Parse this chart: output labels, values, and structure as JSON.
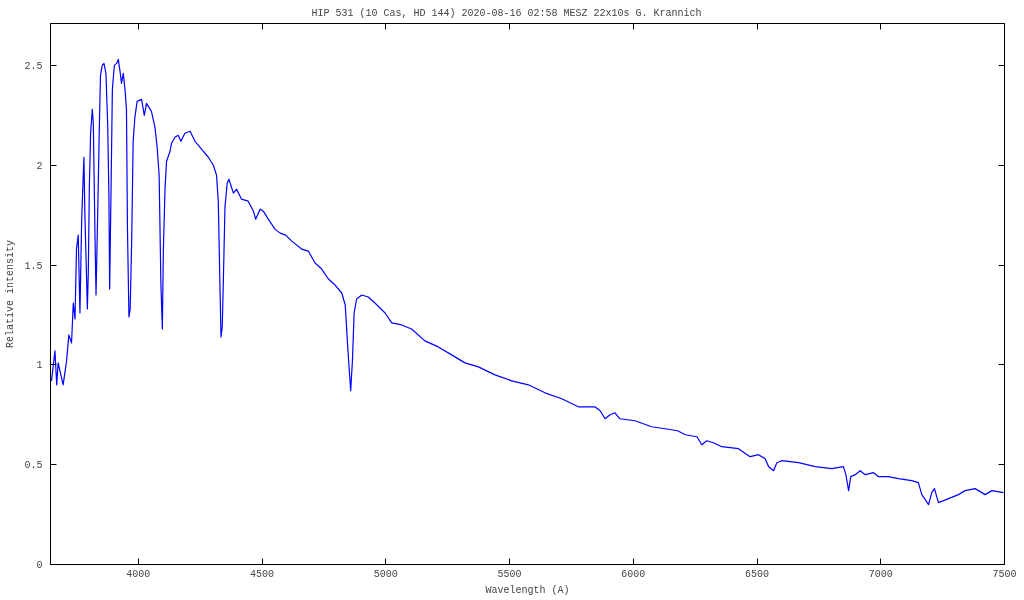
{
  "chart_data": {
    "type": "line",
    "title": "HIP 531  (10 Cas, HD 144)   2020-08-16 02:58 MESZ   22x10s   G. Krannich",
    "xlabel": "Wavelength (A)",
    "ylabel": "Relative intensity",
    "x": [
      3649,
      3663,
      3670,
      3676,
      3696,
      3710,
      3719,
      3730,
      3737,
      3744,
      3750,
      3757,
      3764,
      3771,
      3780,
      3784,
      3794,
      3798,
      3802,
      3807,
      3814,
      3818,
      3825,
      3829,
      3838,
      3842,
      3847,
      3854,
      3861,
      3869,
      3876,
      3881,
      3884,
      3889,
      3895,
      3903,
      3912,
      3919,
      3926,
      3932,
      3939,
      3946,
      3952,
      3956,
      3962,
      3967,
      3973,
      3979,
      3986,
      3995,
      4013,
      4024,
      4033,
      4053,
      4067,
      4076,
      4084,
      4091,
      4097,
      4101,
      4108,
      4114,
      4128,
      4134,
      4148,
      4161,
      4172,
      4188,
      4209,
      4229,
      4256,
      4283,
      4303,
      4316,
      4323,
      4330,
      4334,
      4339,
      4344,
      4350,
      4359,
      4366,
      4384,
      4397,
      4417,
      4444,
      4465,
      4474,
      4492,
      4505,
      4525,
      4552,
      4573,
      4595,
      4620,
      4660,
      4687,
      4714,
      4741,
      4768,
      4795,
      4822,
      4836,
      4846,
      4853,
      4858,
      4865,
      4872,
      4882,
      4903,
      4929,
      4956,
      4997,
      5024,
      5064,
      5104,
      5158,
      5212,
      5266,
      5320,
      5374,
      5441,
      5509,
      5576,
      5643,
      5711,
      5778,
      5845,
      5866,
      5886,
      5906,
      5926,
      5946,
      6007,
      6074,
      6129,
      6179,
      6210,
      6257,
      6277,
      6297,
      6324,
      6358,
      6425,
      6472,
      6506,
      6533,
      6547,
      6567,
      6580,
      6600,
      6668,
      6735,
      6802,
      6849,
      6859,
      6870,
      6879,
      6897,
      6917,
      6937,
      6971,
      6991,
      7031,
      7072,
      7125,
      7152,
      7166,
      7193,
      7206,
      7217,
      7233,
      7274,
      7314,
      7341,
      7381,
      7422,
      7449,
      7496
    ],
    "series": [
      {
        "color": "#0000ff",
        "values": [
          0.92,
          1.07,
          0.9,
          1.01,
          0.9,
          1.02,
          1.15,
          1.11,
          1.31,
          1.23,
          1.58,
          1.65,
          1.26,
          1.73,
          2.04,
          1.75,
          1.28,
          1.48,
          1.89,
          2.16,
          2.28,
          2.21,
          1.63,
          1.35,
          1.9,
          2.17,
          2.45,
          2.5,
          2.51,
          2.46,
          2.21,
          1.85,
          1.38,
          1.82,
          2.38,
          2.5,
          2.51,
          2.53,
          2.47,
          2.41,
          2.46,
          2.38,
          2.28,
          1.68,
          1.24,
          1.28,
          1.62,
          2.12,
          2.24,
          2.32,
          2.33,
          2.25,
          2.31,
          2.27,
          2.19,
          2.09,
          1.95,
          1.41,
          1.18,
          1.57,
          1.89,
          2.02,
          2.07,
          2.11,
          2.14,
          2.15,
          2.12,
          2.16,
          2.17,
          2.12,
          2.08,
          2.04,
          2.0,
          1.95,
          1.82,
          1.38,
          1.14,
          1.19,
          1.45,
          1.79,
          1.91,
          1.93,
          1.86,
          1.88,
          1.83,
          1.82,
          1.77,
          1.73,
          1.78,
          1.77,
          1.73,
          1.68,
          1.66,
          1.65,
          1.62,
          1.58,
          1.57,
          1.51,
          1.48,
          1.43,
          1.4,
          1.36,
          1.3,
          1.09,
          0.96,
          0.87,
          1.02,
          1.26,
          1.33,
          1.35,
          1.34,
          1.31,
          1.26,
          1.21,
          1.2,
          1.18,
          1.12,
          1.09,
          1.05,
          1.01,
          0.99,
          0.95,
          0.92,
          0.9,
          0.86,
          0.83,
          0.79,
          0.79,
          0.77,
          0.73,
          0.75,
          0.76,
          0.73,
          0.72,
          0.69,
          0.68,
          0.67,
          0.65,
          0.64,
          0.6,
          0.62,
          0.61,
          0.59,
          0.58,
          0.54,
          0.55,
          0.53,
          0.49,
          0.47,
          0.51,
          0.52,
          0.51,
          0.49,
          0.48,
          0.49,
          0.45,
          0.37,
          0.44,
          0.45,
          0.47,
          0.45,
          0.46,
          0.44,
          0.44,
          0.43,
          0.42,
          0.41,
          0.35,
          0.3,
          0.36,
          0.38,
          0.31,
          0.33,
          0.35,
          0.37,
          0.38,
          0.35,
          0.37,
          0.36
        ]
      }
    ],
    "xlim": [
      3645,
      7500
    ],
    "ylim": [
      0,
      2.71
    ],
    "xticks": [
      4000,
      4500,
      5000,
      5500,
      6000,
      6500,
      7000,
      7500
    ],
    "yticks": [
      0,
      0.5,
      1,
      1.5,
      2,
      2.5
    ],
    "grid": false,
    "marker": "none",
    "line_style": "solid"
  }
}
